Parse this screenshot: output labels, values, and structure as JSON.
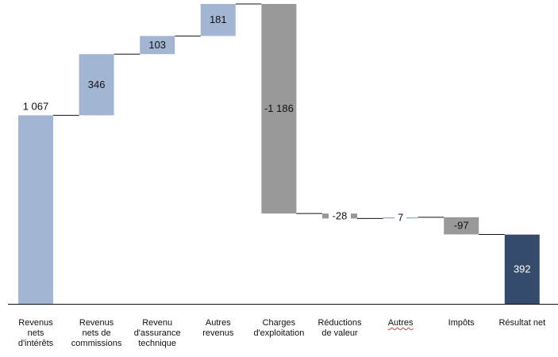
{
  "chart_data": {
    "type": "bar",
    "title": "",
    "xlabel": "",
    "ylabel": "",
    "categories": [
      "Revenus\nnets\nd'intérêts",
      "Revenus\nnets de\ncommissions",
      "Revenu\nd'assurance\ntechnique",
      "Autres\nrevenus",
      "Charges\nd'exploitation",
      "Réductions\nde valeur",
      "Autres",
      "Impôts",
      "Résultat net"
    ],
    "values": [
      1067,
      346,
      103,
      181,
      -1186,
      -28,
      7,
      -97,
      392
    ],
    "value_labels": [
      "1 067",
      "346",
      "103",
      "181",
      "-1 186",
      "-28",
      "7",
      "-97",
      "392"
    ],
    "kinds": [
      "total",
      "increase",
      "increase",
      "increase",
      "decrease",
      "decrease",
      "increase",
      "decrease",
      "total"
    ],
    "ylim": [
      0,
      1697
    ],
    "grid": false,
    "legend": "none",
    "colors": {
      "increase": "#a2b6d4",
      "decrease": "#999999",
      "total_end": "#344b6c",
      "label_light": "#ffffff",
      "connector": "#111111",
      "spellcheck": "#d43b3b"
    }
  }
}
